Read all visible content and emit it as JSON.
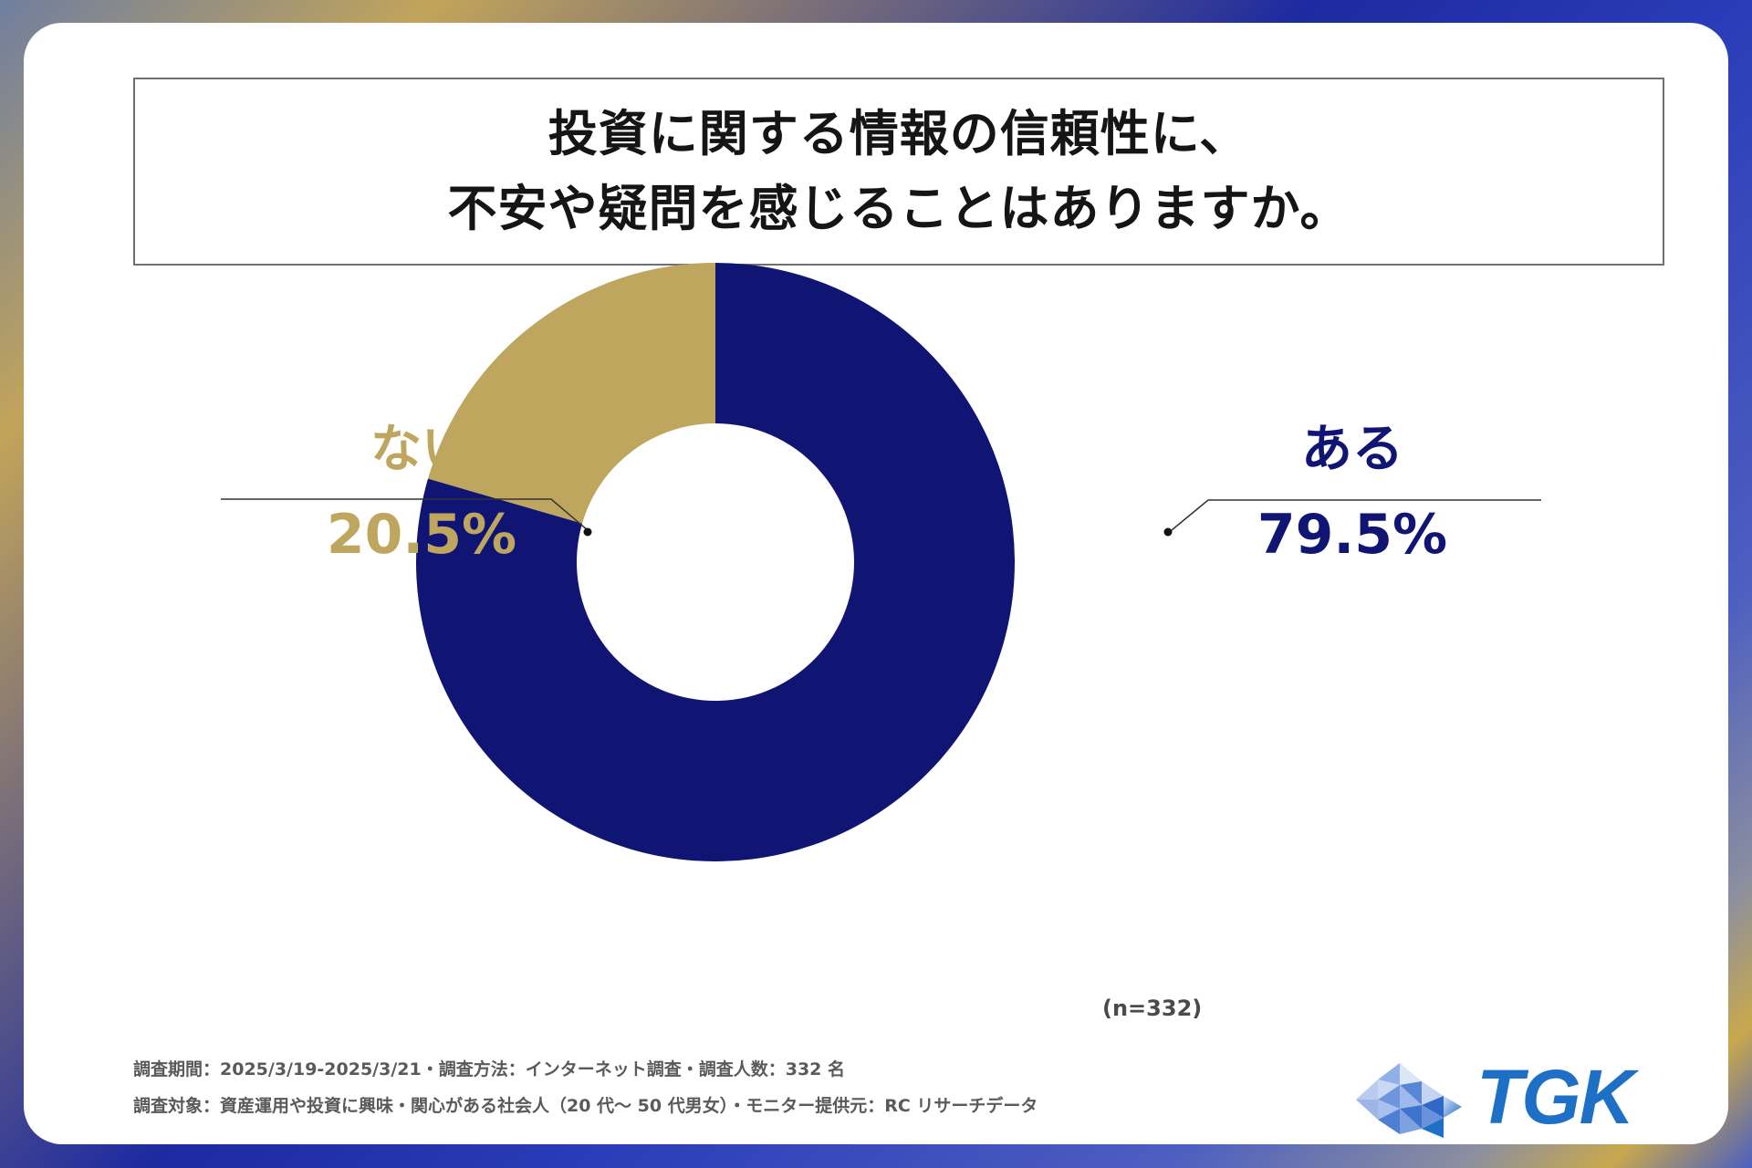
{
  "title": {
    "line1": "投資に関する情報の信頼性に、",
    "line2": "不安や疑問を感じることはありますか。"
  },
  "chart_data": {
    "type": "pie",
    "variant": "donut",
    "slices": [
      {
        "label": "ある",
        "value": 79.5,
        "display": "79.5%",
        "color": "#101573"
      },
      {
        "label": "ない",
        "value": 20.5,
        "display": "20.5%",
        "color": "#bfa65f"
      }
    ],
    "start_angle": "12 o'clock",
    "direction": "clockwise",
    "sample_note": "(n=332)"
  },
  "footer": {
    "line1": "調査期間：2025/3/19-2025/3/21・調査方法：インターネット調査・調査人数：332 名",
    "line2": "調査対象：資産運用や投資に興味・関心がある社会人（20 代～ 50 代男女）・モニター提供元：RC リサーチデータ"
  },
  "logo": {
    "text": "TGK",
    "icon": "triangle-mosaic-icon",
    "color": "#1e6fc6"
  }
}
